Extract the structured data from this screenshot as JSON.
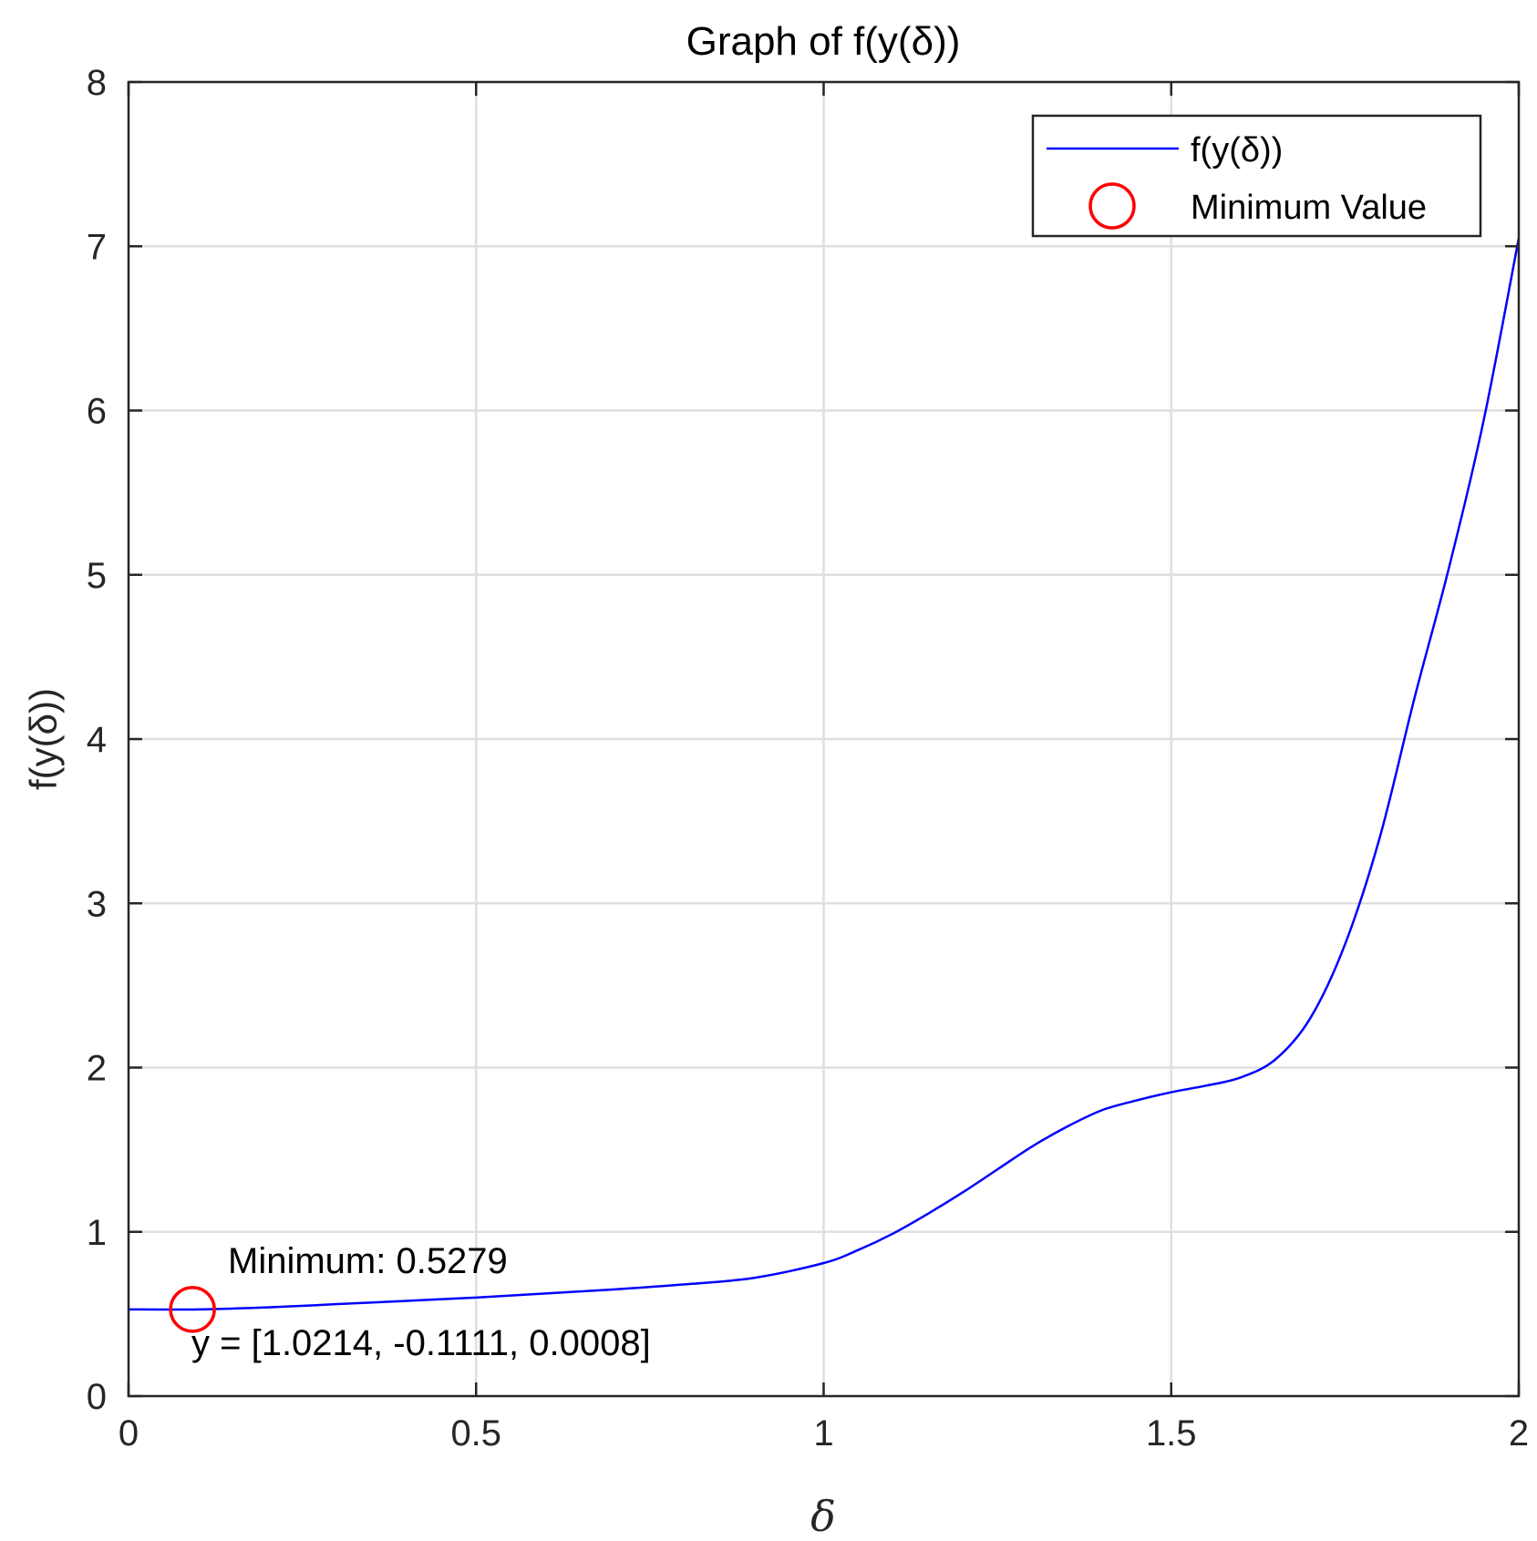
{
  "chart_data": {
    "type": "line",
    "title": "Graph of f(y(δ))",
    "xlabel": "δ",
    "ylabel": "f(y(δ))",
    "xlim": [
      0,
      2
    ],
    "ylim": [
      0,
      8
    ],
    "grid": true,
    "legend_position": "top-right",
    "x_ticks": [
      0,
      0.5,
      1,
      1.5,
      2
    ],
    "x_tick_labels": [
      "0",
      "0.5",
      "1",
      "1.5",
      "2"
    ],
    "y_ticks": [
      0,
      1,
      2,
      3,
      4,
      5,
      6,
      7,
      8
    ],
    "y_tick_labels": [
      "0",
      "1",
      "2",
      "3",
      "4",
      "5",
      "6",
      "7",
      "8"
    ],
    "series": [
      {
        "name": "f(y(δ))",
        "color": "#0000ff",
        "x": [
          0,
          0.1,
          0.2,
          0.3,
          0.4,
          0.5,
          0.6,
          0.7,
          0.8,
          0.9,
          1.0,
          1.05,
          1.1,
          1.15,
          1.2,
          1.25,
          1.3,
          1.35,
          1.4,
          1.45,
          1.5,
          1.55,
          1.6,
          1.65,
          1.7,
          1.75,
          1.8,
          1.85,
          1.9,
          1.95,
          2.0
        ],
        "y": [
          0.528,
          0.528,
          0.54,
          0.56,
          0.58,
          0.6,
          0.625,
          0.65,
          0.68,
          0.72,
          0.81,
          0.89,
          0.99,
          1.11,
          1.24,
          1.38,
          1.52,
          1.64,
          1.74,
          1.8,
          1.85,
          1.89,
          1.94,
          2.05,
          2.3,
          2.75,
          3.4,
          4.25,
          5.05,
          5.95,
          7.05
        ]
      }
    ],
    "minimum_point": {
      "name": "Minimum Value",
      "x": 0.092,
      "y": 0.5279,
      "color": "#ff0000"
    },
    "annotations": {
      "minimum_text": "Minimum: 0.5279",
      "y_text": "y = [1.0214, -0.1111, 0.0008]"
    }
  }
}
